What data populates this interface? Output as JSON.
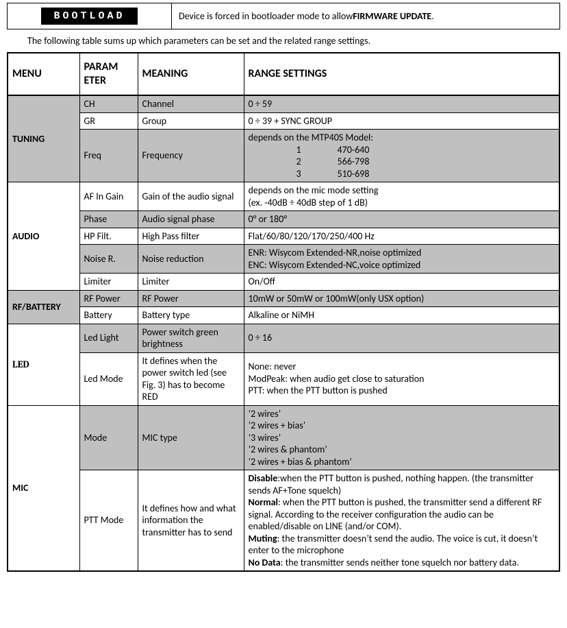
{
  "bootload": {
    "badge": "BOOTLOAD",
    "text_prefix": "Device is forced in bootloader mode to allow ",
    "text_bold": "FIRMWARE UPDATE",
    "text_suffix": "."
  },
  "intro": "The following table sums up which parameters can be set and the related range settings.",
  "headers": {
    "menu": "MENU",
    "param": "PARAM\nETER",
    "meaning": "MEANING",
    "range": "RANGE SETTINGS"
  },
  "tuning": {
    "menu": "TUNING",
    "ch": {
      "param": "CH",
      "meaning": "Channel",
      "range": "0 ÷ 59"
    },
    "gr": {
      "param": "GR",
      "meaning": "Group",
      "range": "0 ÷ 39 + SYNC GROUP"
    },
    "freq": {
      "param": "Freq",
      "meaning": "Frequency",
      "range_prefix": "depends on the MTP40S Model:",
      "rows": [
        {
          "n": "1",
          "r": "470-640"
        },
        {
          "n": "2",
          "r": "566-798"
        },
        {
          "n": "3",
          "r": "510-698"
        }
      ]
    }
  },
  "audio": {
    "menu": "AUDIO",
    "afin": {
      "param": "AF In Gain",
      "meaning": "Gain of the audio signal",
      "range_l1": "depends on the mic mode setting",
      "range_l2": " (ex. -40dB ÷ 40dB step of 1 dB)"
    },
    "phase": {
      "param": "Phase",
      "meaning": "Audio signal phase",
      "range": "0° or 180°"
    },
    "hp": {
      "param": "HP Filt.",
      "meaning": "High Pass filter",
      "range": "Flat/60/80/120/170/250/400 Hz"
    },
    "noise": {
      "param": "Noise R.",
      "meaning": "Noise reduction",
      "range_l1": "ENR: Wisycom Extended-NR,noise optimized",
      "range_l2": "ENC: Wisycom Extended-NC,voice optimized"
    },
    "lim": {
      "param": "Limiter",
      "meaning": "Limiter",
      "range": "On/Off"
    }
  },
  "rfb": {
    "menu": "RF/BATTERY",
    "rfp": {
      "param": "RF Power",
      "meaning": "RF Power",
      "range": "10mW or 50mW or 100mW(only USX option)"
    },
    "bat": {
      "param": "Battery",
      "meaning": "Battery type",
      "range": "Alkaline or NiMH"
    }
  },
  "led": {
    "menu": "LED",
    "light": {
      "param": "Led Light",
      "meaning": "Power switch green brightness",
      "range": "0 ÷ 16"
    },
    "mode": {
      "param": "Led Mode",
      "meaning": "It defines  when the power switch led (see Fig. 3) has to become RED",
      "range_l1": "None: never",
      "range_l2": "ModPeak: when audio get close to saturation",
      "range_l3": "PTT: when the PTT button is pushed"
    }
  },
  "mic": {
    "menu": "MIC",
    "mode": {
      "param": "Mode",
      "meaning": "MIC type",
      "opts": [
        "’2 wires’",
        "’2 wires + bias’",
        "’3 wires’",
        "’2 wires &  phantom’",
        "’2 wires + bias &  phantom’"
      ]
    },
    "ptt": {
      "param": "PTT Mode",
      "meaning": "It defines how and what information the transmitter has to send",
      "disable_b": "Disable",
      "disable_t": ":when the PTT button is pushed, nothing happen. (the transmitter sends AF+Tone squelch)",
      "normal_b": "Normal",
      "normal_t": ": when the PTT button is pushed, the transmitter send a different RF signal. According to the receiver configuration the audio can be enabled/disable  on LINE (and/or COM).",
      "muting_b": "Muting",
      "muting_t": ": the transmitter doesn’t send the audio. The voice is cut, it doesn’t enter to the microphone",
      "nodata_b": "No Data",
      "nodata_t": ": the transmitter sends neither tone squelch nor battery data."
    }
  }
}
